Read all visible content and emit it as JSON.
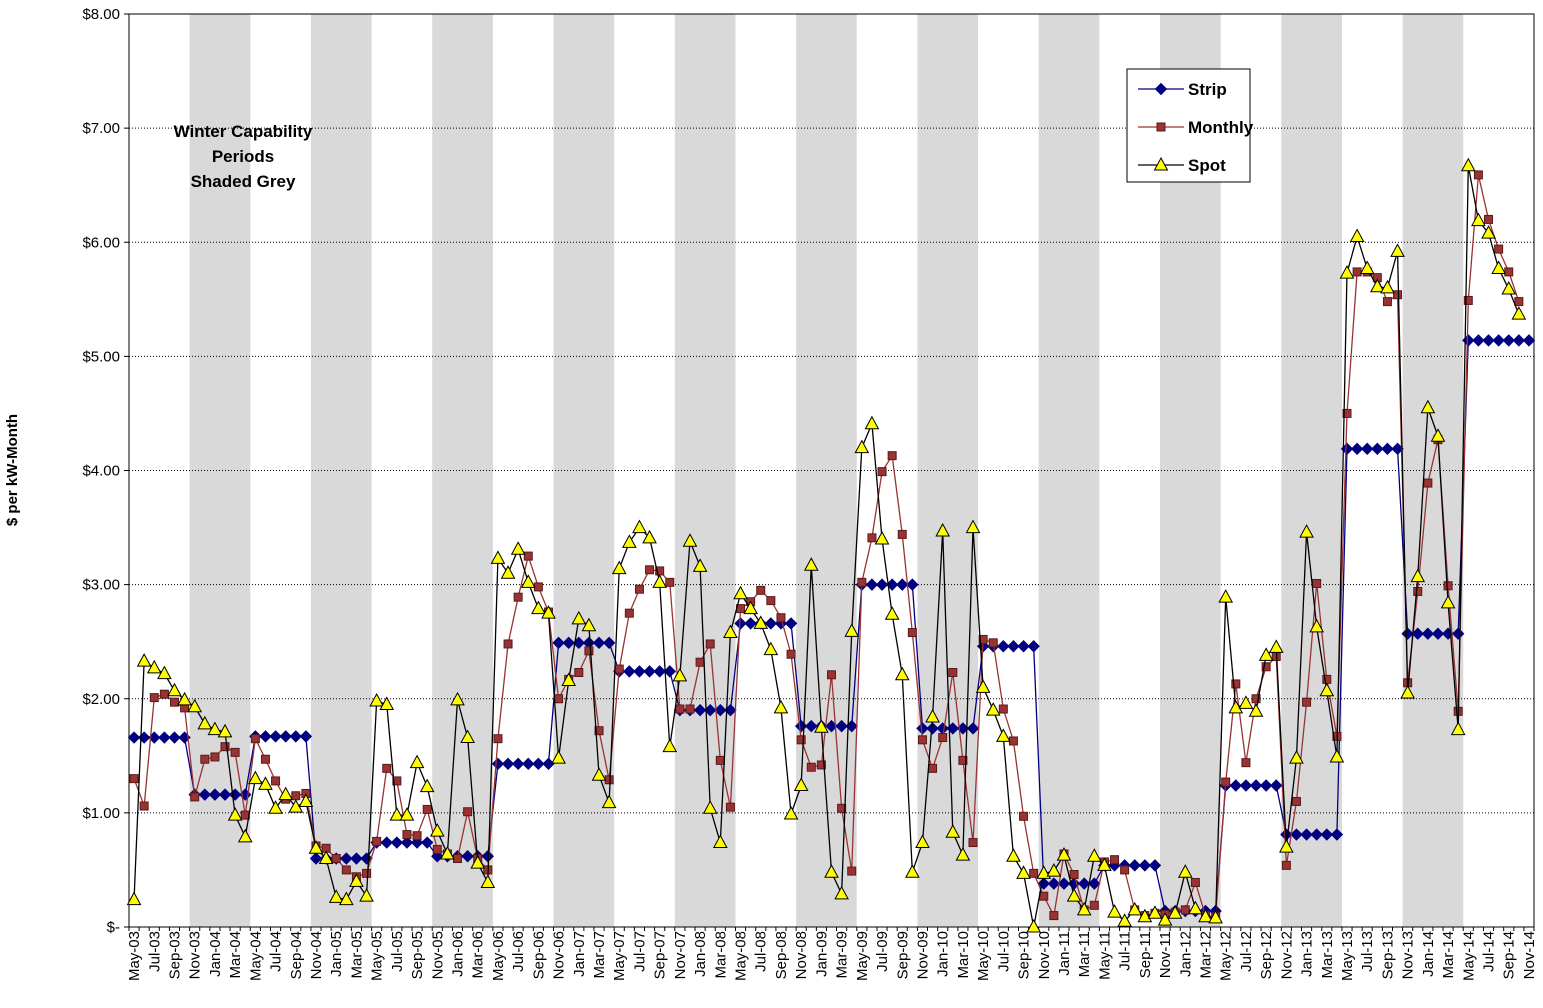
{
  "chart_data": {
    "type": "line",
    "ylabel": "$ per kW-Month",
    "ylim": [
      0,
      8
    ],
    "y_ticks": [
      "$-",
      "$1.00",
      "$2.00",
      "$3.00",
      "$4.00",
      "$5.00",
      "$6.00",
      "$7.00",
      "$8.00"
    ],
    "x_start": "May-03",
    "x_tick_labels": [
      "May-03",
      "Jul-03",
      "Sep-03",
      "Nov-03",
      "Jan-04",
      "Mar-04",
      "May-04",
      "Jul-04",
      "Sep-04",
      "Nov-04",
      "Jan-05",
      "Mar-05",
      "May-05",
      "Jul-05",
      "Sep-05",
      "Nov-05",
      "Jan-06",
      "Mar-06",
      "May-06",
      "Jul-06",
      "Sep-06",
      "Nov-06",
      "Jan-07",
      "Mar-07",
      "May-07",
      "Jul-07",
      "Sep-07",
      "Nov-07",
      "Jan-08",
      "Mar-08",
      "May-08",
      "Jul-08",
      "Sep-08",
      "Nov-08",
      "Jan-09",
      "Mar-09",
      "May-09",
      "Jul-09",
      "Sep-09",
      "Nov-09",
      "Jan-10",
      "Mar-10",
      "May-10",
      "Jul-10",
      "Sep-10",
      "Nov-10",
      "Jan-11",
      "Mar-11",
      "May-11",
      "Jul-11",
      "Sep-11",
      "Nov-11",
      "Jan-12",
      "Mar-12",
      "May-12",
      "Jul-12",
      "Sep-12",
      "Nov-12",
      "Jan-13",
      "Mar-13",
      "May-13",
      "Jul-13",
      "Sep-13",
      "Nov-13",
      "Jan-14",
      "Mar-14",
      "May-14",
      "Jul-14",
      "Sep-14",
      "Nov-14"
    ],
    "annotation": [
      "Winter Capability",
      "Periods",
      "Shaded Grey"
    ],
    "shaded_periods": [
      [
        "Nov-03",
        "Apr-04"
      ],
      [
        "Nov-04",
        "Apr-05"
      ],
      [
        "Nov-05",
        "Apr-06"
      ],
      [
        "Nov-06",
        "Apr-07"
      ],
      [
        "Nov-07",
        "Apr-08"
      ],
      [
        "Nov-08",
        "Apr-09"
      ],
      [
        "Nov-09",
        "Apr-10"
      ],
      [
        "Nov-10",
        "Apr-11"
      ],
      [
        "Nov-11",
        "Apr-12"
      ],
      [
        "Nov-12",
        "Apr-13"
      ],
      [
        "Nov-13",
        "Apr-14"
      ]
    ],
    "grid": true,
    "legend_position": "top-right",
    "series": [
      {
        "name": "Strip",
        "color": "#000080",
        "marker": "diamond",
        "values": [
          1.66,
          1.66,
          1.66,
          1.66,
          1.66,
          1.66,
          1.16,
          1.16,
          1.16,
          1.16,
          1.16,
          1.16,
          1.67,
          1.67,
          1.67,
          1.67,
          1.67,
          1.67,
          0.6,
          0.6,
          0.6,
          0.6,
          0.6,
          0.6,
          0.74,
          0.74,
          0.74,
          0.74,
          0.74,
          0.74,
          0.62,
          0.62,
          0.62,
          0.62,
          0.62,
          0.62,
          1.43,
          1.43,
          1.43,
          1.43,
          1.43,
          1.43,
          2.49,
          2.49,
          2.49,
          2.49,
          2.49,
          2.49,
          2.24,
          2.24,
          2.24,
          2.24,
          2.24,
          2.24,
          1.9,
          1.9,
          1.9,
          1.9,
          1.9,
          1.9,
          2.66,
          2.66,
          2.66,
          2.66,
          2.66,
          2.66,
          1.76,
          1.76,
          1.76,
          1.76,
          1.76,
          1.76,
          3.0,
          3.0,
          3.0,
          3.0,
          3.0,
          3.0,
          1.74,
          1.74,
          1.74,
          1.74,
          1.74,
          1.74,
          2.46,
          2.46,
          2.46,
          2.46,
          2.46,
          2.46,
          0.38,
          0.38,
          0.38,
          0.38,
          0.38,
          0.38,
          0.54,
          0.54,
          0.54,
          0.54,
          0.54,
          0.54,
          0.14,
          0.14,
          0.14,
          0.14,
          0.14,
          0.14,
          1.24,
          1.24,
          1.24,
          1.24,
          1.24,
          1.24,
          0.81,
          0.81,
          0.81,
          0.81,
          0.81,
          0.81,
          4.19,
          4.19,
          4.19,
          4.19,
          4.19,
          4.19,
          2.57,
          2.57,
          2.57,
          2.57,
          2.57,
          2.57,
          5.14,
          5.14,
          5.14,
          5.14,
          5.14,
          5.14,
          5.14
        ]
      },
      {
        "name": "Monthly",
        "color": "#993333",
        "marker": "square",
        "values": [
          1.3,
          1.06,
          2.01,
          2.04,
          1.97,
          1.92,
          1.14,
          1.47,
          1.49,
          1.58,
          1.53,
          0.98,
          1.65,
          1.47,
          1.28,
          1.12,
          1.15,
          1.17,
          0.71,
          0.69,
          0.6,
          0.5,
          0.44,
          0.47,
          0.75,
          1.39,
          1.28,
          0.81,
          0.8,
          1.03,
          0.68,
          0.64,
          0.6,
          1.01,
          0.6,
          0.5,
          1.65,
          2.48,
          2.89,
          3.25,
          2.98,
          2.76,
          2.0,
          2.17,
          2.23,
          2.42,
          1.72,
          1.29,
          2.26,
          2.75,
          2.96,
          3.13,
          3.12,
          3.02,
          1.91,
          1.91,
          2.32,
          2.48,
          1.46,
          1.05,
          2.79,
          2.85,
          2.95,
          2.86,
          2.71,
          2.39,
          1.64,
          1.4,
          1.42,
          2.21,
          1.04,
          0.49,
          3.02,
          3.41,
          3.99,
          4.13,
          3.44,
          2.58,
          1.64,
          1.39,
          1.66,
          2.23,
          1.46,
          0.74,
          2.52,
          2.49,
          1.91,
          1.63,
          0.97,
          0.47,
          0.27,
          0.1,
          0.64,
          0.46,
          0.15,
          0.19,
          0.57,
          0.59,
          0.5,
          0.15,
          0.1,
          0.12,
          0.11,
          0.13,
          0.15,
          0.39,
          0.1,
          0.09,
          1.27,
          2.13,
          1.44,
          2.0,
          2.28,
          2.37,
          0.54,
          1.1,
          1.97,
          3.01,
          2.17,
          1.67,
          4.5,
          5.74,
          5.74,
          5.69,
          5.48,
          5.54,
          2.14,
          2.94,
          3.89,
          4.27,
          2.99,
          1.89,
          5.49,
          6.59,
          6.2,
          5.94,
          5.74,
          5.48
        ]
      },
      {
        "name": "Spot",
        "color": "#ffff00",
        "marker": "triangle",
        "values": [
          0.24,
          2.33,
          2.27,
          2.22,
          2.07,
          1.99,
          1.93,
          1.78,
          1.73,
          1.71,
          0.98,
          0.79,
          1.3,
          1.25,
          1.04,
          1.16,
          1.05,
          1.1,
          0.69,
          0.6,
          0.26,
          0.24,
          0.4,
          0.27,
          1.98,
          1.95,
          0.98,
          0.98,
          1.44,
          1.23,
          0.84,
          0.64,
          1.99,
          1.66,
          0.56,
          0.39,
          3.23,
          3.1,
          3.31,
          3.02,
          2.79,
          2.75,
          1.48,
          2.16,
          2.7,
          2.64,
          1.33,
          1.09,
          3.14,
          3.37,
          3.5,
          3.41,
          3.02,
          1.58,
          2.2,
          3.38,
          3.16,
          1.04,
          0.74,
          2.58,
          2.92,
          2.79,
          2.66,
          2.43,
          1.92,
          0.99,
          1.24,
          3.17,
          1.75,
          0.48,
          0.29,
          2.59,
          4.2,
          4.41,
          3.4,
          2.74,
          2.21,
          0.48,
          0.74,
          1.84,
          3.47,
          0.83,
          0.63,
          3.5,
          2.1,
          1.9,
          1.67,
          0.62,
          0.47,
          0.0,
          0.47,
          0.49,
          0.63,
          0.27,
          0.15,
          0.62,
          0.54,
          0.13,
          0.05,
          0.15,
          0.09,
          0.12,
          0.06,
          0.12,
          0.48,
          0.16,
          0.09,
          0.08,
          2.89,
          1.92,
          1.96,
          1.89,
          2.38,
          2.45,
          0.7,
          1.48,
          3.46,
          2.63,
          2.07,
          1.49,
          5.73,
          6.05,
          5.77,
          5.61,
          5.6,
          5.92,
          2.05,
          3.07,
          4.55,
          4.3,
          2.84,
          1.73,
          6.67,
          6.19,
          6.08,
          5.77,
          5.59,
          5.37
        ]
      }
    ]
  }
}
